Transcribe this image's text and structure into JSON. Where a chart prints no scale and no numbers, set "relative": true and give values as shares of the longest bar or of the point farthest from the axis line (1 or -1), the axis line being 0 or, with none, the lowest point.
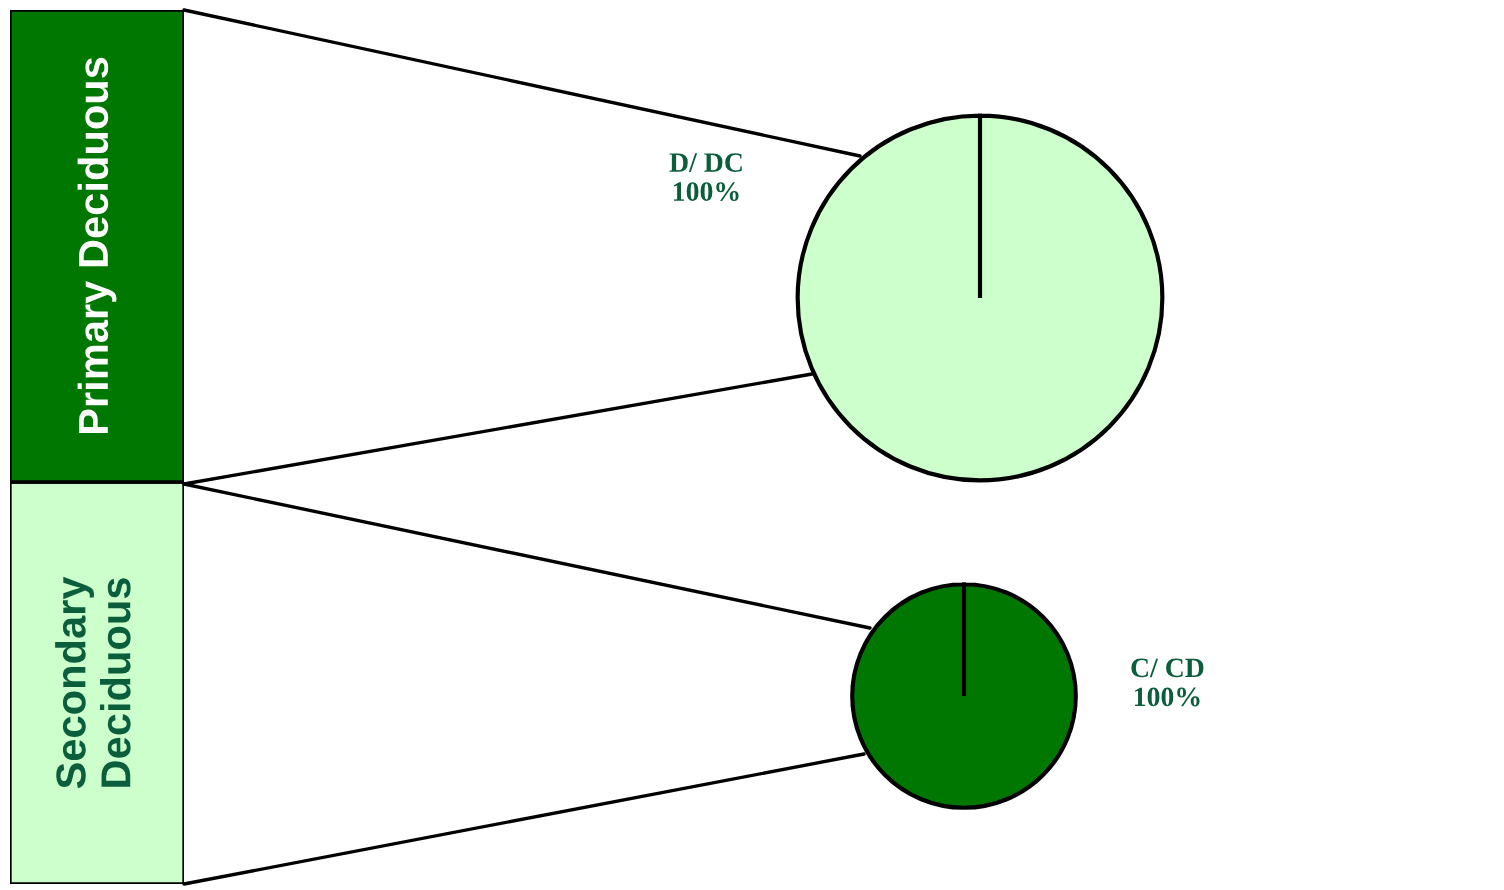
{
  "chart_data": [
    {
      "type": "bar",
      "stacked": true,
      "relative": true,
      "categories": [
        null
      ],
      "legend": false,
      "series": [
        {
          "name": "Secondary Deciduous",
          "color": "#ccffcc",
          "values": [
            0.46
          ]
        },
        {
          "name": "Primary Deciduous",
          "color": "#007700",
          "values": [
            0.54
          ]
        }
      ]
    },
    {
      "type": "pie",
      "categories": [
        "D/ DC"
      ],
      "values": [
        100
      ],
      "colors": [
        "#ccffcc"
      ],
      "value_labels": [
        "100%"
      ]
    },
    {
      "type": "pie",
      "categories": [
        "C/ CD"
      ],
      "values": [
        100
      ],
      "colors": [
        "#007700"
      ],
      "value_labels": [
        "100%"
      ]
    }
  ]
}
